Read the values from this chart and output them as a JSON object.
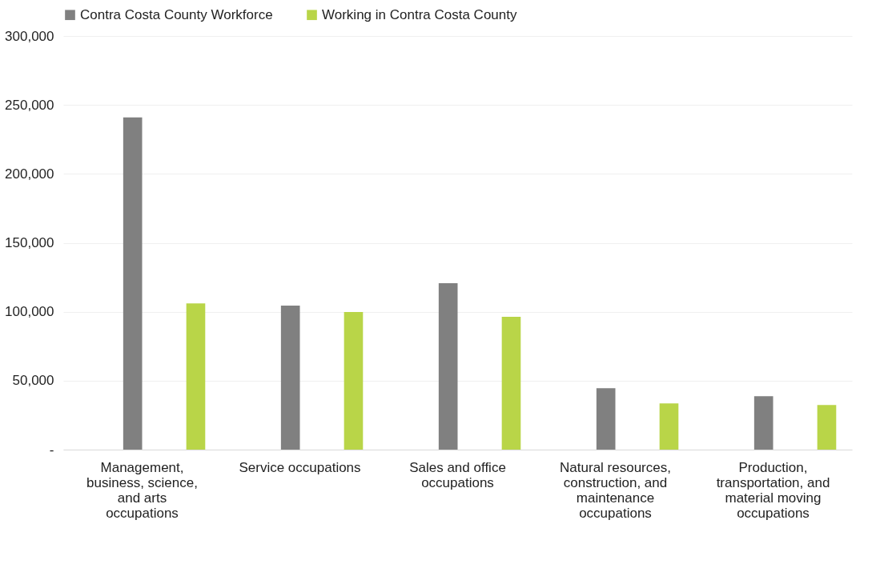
{
  "chart_data": {
    "type": "bar",
    "categories": [
      "Management, business, science, and arts occupations",
      "Service occupations",
      "Sales and office occupations",
      "Natural resources, construction, and maintenance occupations",
      "Production, transportation, and material moving occupations"
    ],
    "series": [
      {
        "name": "Contra Costa County Workforce",
        "color": "#808080",
        "values": [
          241000,
          104500,
          120700,
          44500,
          38800
        ]
      },
      {
        "name": "Working in Contra Costa County",
        "color": "#b9d548",
        "values": [
          106000,
          99800,
          96300,
          33500,
          32300
        ]
      }
    ],
    "ylim": [
      0,
      300000
    ],
    "yticks": [
      {
        "value": 0,
        "label": "-"
      },
      {
        "value": 50000,
        "label": "50,000"
      },
      {
        "value": 100000,
        "label": "100,000"
      },
      {
        "value": 150000,
        "label": "150,000"
      },
      {
        "value": 200000,
        "label": "200,000"
      },
      {
        "value": 250000,
        "label": "250,000"
      },
      {
        "value": 300000,
        "label": "300,000"
      }
    ],
    "grid": "y",
    "legend": "top"
  }
}
